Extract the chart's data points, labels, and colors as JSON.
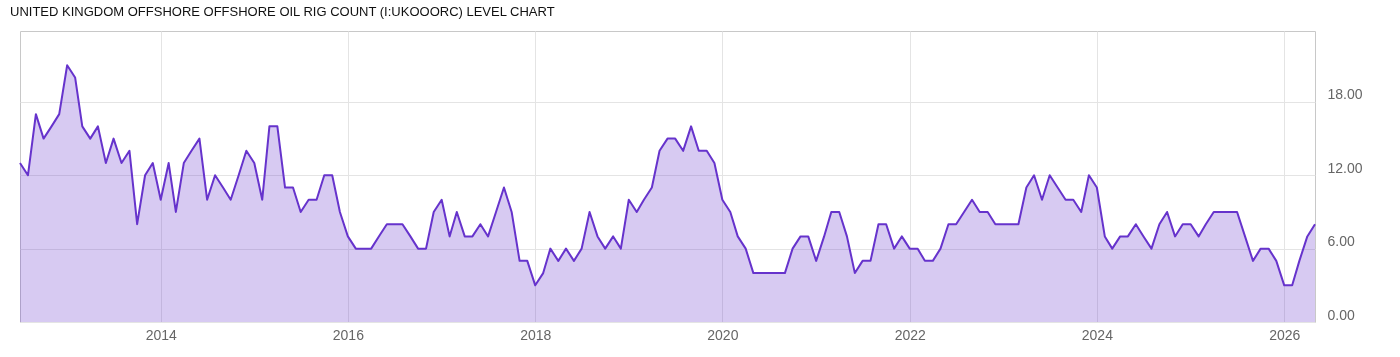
{
  "chart_data": {
    "type": "area",
    "title": "UNITED KINGDOM OFFSHORE OFFSHORE OIL RIG COUNT (I:UKOOORC) LEVEL CHART",
    "x": [
      "2012-07",
      "2012-08",
      "2012-09",
      "2012-10",
      "2012-11",
      "2012-12",
      "2013-01",
      "2013-02",
      "2013-03",
      "2013-04",
      "2013-05",
      "2013-06",
      "2013-07",
      "2013-08",
      "2013-09",
      "2013-10",
      "2013-11",
      "2013-12",
      "2014-01",
      "2014-02",
      "2014-03",
      "2014-04",
      "2014-05",
      "2014-06",
      "2014-07",
      "2014-08",
      "2014-09",
      "2014-10",
      "2014-11",
      "2014-12",
      "2015-01",
      "2015-02",
      "2015-03",
      "2015-04",
      "2015-05",
      "2015-06",
      "2015-07",
      "2015-08",
      "2015-09",
      "2015-10",
      "2015-11",
      "2015-12",
      "2016-01",
      "2016-02",
      "2016-03",
      "2016-04",
      "2016-05",
      "2016-06",
      "2016-07",
      "2016-08",
      "2016-09",
      "2016-10",
      "2016-11",
      "2016-12",
      "2017-01",
      "2017-02",
      "2017-03",
      "2017-04",
      "2017-05",
      "2017-06",
      "2017-07",
      "2017-08",
      "2017-09",
      "2017-10",
      "2017-11",
      "2017-12",
      "2018-01",
      "2018-02",
      "2018-03",
      "2018-04",
      "2018-05",
      "2018-06",
      "2018-07",
      "2018-08",
      "2018-09",
      "2018-10",
      "2018-11",
      "2018-12",
      "2019-01",
      "2019-02",
      "2019-03",
      "2019-04",
      "2019-05",
      "2019-06",
      "2019-07",
      "2019-08",
      "2019-09",
      "2019-10",
      "2019-11",
      "2019-12",
      "2020-01",
      "2020-02",
      "2020-03",
      "2020-04",
      "2020-05",
      "2020-06",
      "2020-07",
      "2020-08",
      "2020-09",
      "2020-10",
      "2020-11",
      "2020-12",
      "2021-01",
      "2021-02",
      "2021-03",
      "2021-04",
      "2021-05",
      "2021-06",
      "2021-07",
      "2021-08",
      "2021-09",
      "2021-10",
      "2021-11",
      "2021-12",
      "2022-01",
      "2022-02",
      "2022-03",
      "2022-04",
      "2022-05",
      "2022-06",
      "2022-07",
      "2022-08",
      "2022-09",
      "2022-10",
      "2022-11",
      "2022-12",
      "2023-01",
      "2023-02",
      "2023-03",
      "2023-04",
      "2023-05",
      "2023-06",
      "2023-07",
      "2023-08",
      "2023-09",
      "2023-10",
      "2023-11",
      "2023-12",
      "2024-01",
      "2024-02",
      "2024-03",
      "2024-04",
      "2024-05",
      "2024-06",
      "2024-07",
      "2024-08",
      "2024-09",
      "2024-10",
      "2024-11",
      "2024-12",
      "2025-01",
      "2025-02",
      "2025-03",
      "2025-04",
      "2025-05",
      "2025-06",
      "2025-07",
      "2025-08",
      "2025-09",
      "2025-10",
      "2025-11",
      "2025-12",
      "2026-01",
      "2026-02",
      "2026-03",
      "2026-04",
      "2026-05"
    ],
    "series": [
      {
        "color": "#6633cc",
        "values": [
          13,
          12,
          17,
          15,
          16,
          17,
          21,
          20,
          16,
          15,
          16,
          13,
          15,
          13,
          14,
          8,
          12,
          13,
          10,
          13,
          9,
          13,
          14,
          15,
          10,
          12,
          11,
          10,
          12,
          14,
          13,
          10,
          16,
          16,
          11,
          11,
          9,
          10,
          10,
          12,
          12,
          9,
          7,
          6,
          6,
          6,
          7,
          8,
          8,
          8,
          7,
          6,
          6,
          9,
          10,
          7,
          9,
          7,
          7,
          8,
          7,
          9,
          11,
          9,
          5,
          5,
          3,
          4,
          6,
          5,
          6,
          5,
          6,
          9,
          7,
          6,
          7,
          6,
          10,
          9,
          10,
          11,
          14,
          15,
          15,
          14,
          16,
          14,
          14,
          13,
          10,
          9,
          7,
          6,
          4,
          4,
          4,
          4,
          4,
          6,
          7,
          7,
          5,
          7,
          9,
          9,
          7,
          4,
          5,
          5,
          8,
          8,
          6,
          7,
          6,
          6,
          5,
          5,
          6,
          8,
          8,
          9,
          10,
          9,
          9,
          8,
          8,
          8,
          8,
          11,
          12,
          10,
          12,
          11,
          10,
          10,
          9,
          12,
          11,
          7,
          6,
          7,
          7,
          8,
          7,
          6,
          8,
          9,
          7,
          8,
          8,
          7,
          8,
          9,
          9,
          9,
          9,
          7,
          5,
          6,
          6,
          5,
          3,
          3,
          5,
          7,
          8
        ]
      }
    ],
    "xlim": [
      "2012-07",
      "2026-05"
    ],
    "xticks": [
      {
        "value": "2014",
        "label": "2014"
      },
      {
        "value": "2016",
        "label": "2016"
      },
      {
        "value": "2018",
        "label": "2018"
      },
      {
        "value": "2020",
        "label": "2020"
      },
      {
        "value": "2022",
        "label": "2022"
      },
      {
        "value": "2024",
        "label": "2024"
      },
      {
        "value": "2026",
        "label": "2026"
      }
    ],
    "ylim": [
      0,
      23.8
    ],
    "yticks": [
      {
        "value": 0,
        "label": "0.00"
      },
      {
        "value": 6,
        "label": "6.00"
      },
      {
        "value": 12,
        "label": "12.00"
      },
      {
        "value": 18,
        "label": "18.00"
      }
    ],
    "grid": true
  }
}
